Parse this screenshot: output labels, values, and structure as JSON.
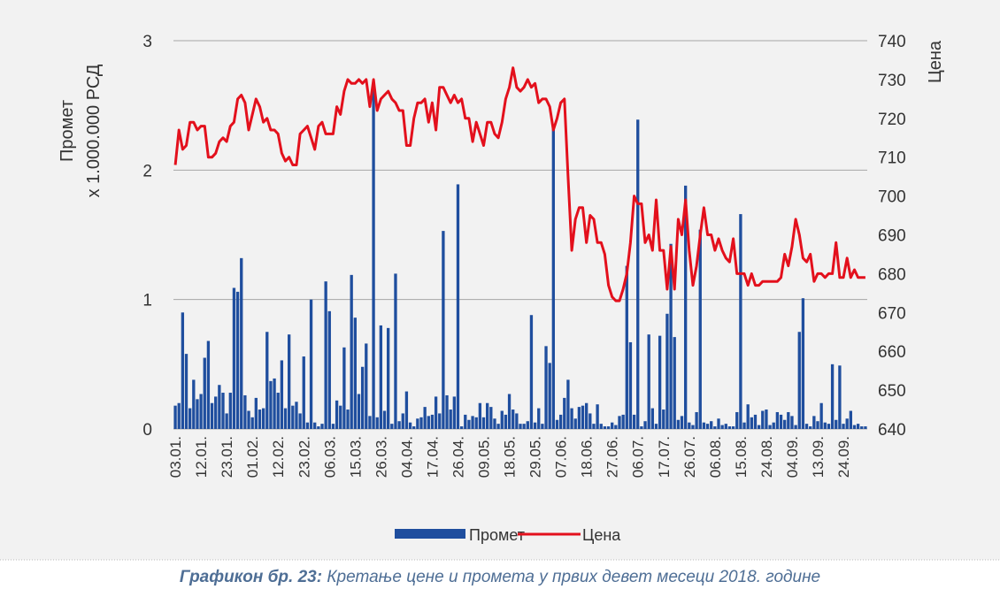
{
  "chart_data": {
    "type": "bar_line",
    "y_label": [
      "Промет",
      "x 1.000.000 РСД"
    ],
    "y2_label": "Цена",
    "caption_prefix": "Графикон бр. 23:",
    "caption": "Кретање цене и промета у првих девет месеци 2018. године",
    "ylim": [
      0,
      3
    ],
    "yticks": [
      0,
      1,
      2,
      3
    ],
    "y2lim": [
      640,
      740
    ],
    "y2ticks": [
      640,
      650,
      660,
      670,
      680,
      690,
      700,
      710,
      720,
      730,
      740
    ],
    "grid": true,
    "categories": [
      "03.01.",
      null,
      null,
      null,
      null,
      null,
      null,
      "12.01.",
      null,
      null,
      null,
      null,
      null,
      null,
      "23.01.",
      null,
      null,
      null,
      null,
      null,
      null,
      "01.02.",
      null,
      null,
      null,
      null,
      null,
      null,
      "12.02.",
      null,
      null,
      null,
      null,
      null,
      null,
      "23.02.",
      null,
      null,
      null,
      null,
      null,
      null,
      "06.03.",
      null,
      null,
      null,
      null,
      null,
      null,
      "15.03.",
      null,
      null,
      null,
      null,
      null,
      null,
      "26.03.",
      null,
      null,
      null,
      null,
      null,
      null,
      "04.04.",
      null,
      null,
      null,
      null,
      null,
      null,
      "17.04.",
      null,
      null,
      null,
      null,
      null,
      null,
      "26.04.",
      null,
      null,
      null,
      null,
      null,
      null,
      "09.05.",
      null,
      null,
      null,
      null,
      null,
      null,
      "18.05.",
      null,
      null,
      null,
      null,
      null,
      null,
      "29.05.",
      null,
      null,
      null,
      null,
      null,
      null,
      "07.06.",
      null,
      null,
      null,
      null,
      null,
      null,
      "18.06.",
      null,
      null,
      null,
      null,
      null,
      null,
      "27.06.",
      null,
      null,
      null,
      null,
      null,
      null,
      "06.07.",
      null,
      null,
      null,
      null,
      null,
      null,
      "17.07.",
      null,
      null,
      null,
      null,
      null,
      null,
      "26.07.",
      null,
      null,
      null,
      null,
      null,
      null,
      "06.08.",
      null,
      null,
      null,
      null,
      null,
      null,
      "15.08.",
      null,
      null,
      null,
      null,
      null,
      null,
      "24.08.",
      null,
      null,
      null,
      null,
      null,
      null,
      "04.09.",
      null,
      null,
      null,
      null,
      null,
      null,
      "13.09.",
      null,
      null,
      null,
      null,
      null,
      null,
      "24.09.",
      null,
      null,
      null,
      null,
      null,
      null
    ],
    "series": [
      {
        "name": "Промет",
        "color": "#1f4e9e",
        "values": [
          0.18,
          0.2,
          0.9,
          0.58,
          0.16,
          0.38,
          0.23,
          0.27,
          0.55,
          0.68,
          0.2,
          0.25,
          0.34,
          0.28,
          0.12,
          0.28,
          1.09,
          1.06,
          1.32,
          0.26,
          0.14,
          0.09,
          0.24,
          0.15,
          0.16,
          0.75,
          0.37,
          0.39,
          0.28,
          0.53,
          0.16,
          0.73,
          0.18,
          0.21,
          0.12,
          0.56,
          0.05,
          1.0,
          0.05,
          0.02,
          0.04,
          1.14,
          0.91,
          0.04,
          0.22,
          0.18,
          0.63,
          0.15,
          1.19,
          0.86,
          0.27,
          0.48,
          0.66,
          0.1,
          2.65,
          0.09,
          0.8,
          0.14,
          0.78,
          0.04,
          1.2,
          0.06,
          0.12,
          0.29,
          0.05,
          0.02,
          0.08,
          0.09,
          0.17,
          0.1,
          0.11,
          0.25,
          0.12,
          1.53,
          0.26,
          0.15,
          0.25,
          1.89,
          0.02,
          0.11,
          0.07,
          0.1,
          0.09,
          0.2,
          0.09,
          0.2,
          0.17,
          0.08,
          0.04,
          0.14,
          0.11,
          0.27,
          0.15,
          0.12,
          0.04,
          0.04,
          0.06,
          0.88,
          0.05,
          0.16,
          0.04,
          0.64,
          0.51,
          2.34,
          0.07,
          0.11,
          0.24,
          0.38,
          0.16,
          0.08,
          0.17,
          0.18,
          0.2,
          0.12,
          0.04,
          0.19,
          0.04,
          0.02,
          0.02,
          0.05,
          0.03,
          0.1,
          0.11,
          1.26,
          0.67,
          0.11,
          2.39,
          0.02,
          0.06,
          0.73,
          0.16,
          0.04,
          0.72,
          0.15,
          0.89,
          1.43,
          0.71,
          0.07,
          0.1,
          1.88,
          0.05,
          0.03,
          0.13,
          1.54,
          0.05,
          0.04,
          0.06,
          0.02,
          0.08,
          0.03,
          0.04,
          0.02,
          0.02,
          0.13,
          1.66,
          0.05,
          0.19,
          0.09,
          0.11,
          0.03,
          0.14,
          0.15,
          0.03,
          0.05,
          0.13,
          0.11,
          0.07,
          0.13,
          0.1,
          0.03,
          0.75,
          1.01,
          0.04,
          0.02,
          0.1,
          0.06,
          0.2,
          0.05,
          0.04,
          0.5,
          0.07,
          0.49,
          0.04,
          0.08,
          0.14,
          0.03,
          0.04,
          0.02,
          0.02
        ]
      },
      {
        "name": "Цена",
        "color": "#e3101c",
        "axis": "y2",
        "values": [
          708,
          717,
          712,
          713,
          719,
          719,
          717,
          718,
          718,
          710,
          710,
          711,
          714,
          715,
          714,
          718,
          719,
          725,
          726,
          724,
          717,
          721,
          725,
          723,
          719,
          720,
          717,
          717,
          716,
          711,
          709,
          710,
          708,
          708,
          716,
          717,
          718,
          715,
          712,
          718,
          719,
          716,
          716,
          716,
          723,
          721,
          727,
          730,
          729,
          729,
          730,
          729,
          730,
          723,
          730,
          722,
          725,
          726,
          727,
          725,
          724,
          722,
          722,
          713,
          713,
          720,
          724,
          724,
          725,
          719,
          724,
          717,
          728,
          728,
          726,
          724,
          726,
          724,
          725,
          720,
          720,
          714,
          719,
          716,
          713,
          719,
          719,
          716,
          715,
          719,
          725,
          728,
          733,
          728,
          727,
          728,
          730,
          728,
          729,
          724,
          725,
          725,
          723,
          717,
          720,
          724,
          725,
          705,
          686,
          694,
          697,
          697,
          688,
          695,
          694,
          688,
          688,
          685,
          677,
          674,
          673,
          673,
          676,
          680,
          688,
          700,
          698,
          698,
          688,
          690,
          686,
          699,
          686,
          686,
          676,
          687,
          676,
          694,
          690,
          699,
          686,
          677,
          682,
          690,
          697,
          690,
          690,
          686,
          689,
          686,
          684,
          683,
          689,
          680,
          680,
          680,
          677,
          680,
          677,
          677,
          678,
          678,
          678,
          678,
          678,
          679,
          685,
          682,
          687,
          694,
          690,
          684,
          683,
          685,
          678,
          680,
          680,
          679,
          680,
          680,
          688,
          679,
          679,
          684,
          679,
          681,
          679,
          679,
          679
        ]
      }
    ]
  }
}
